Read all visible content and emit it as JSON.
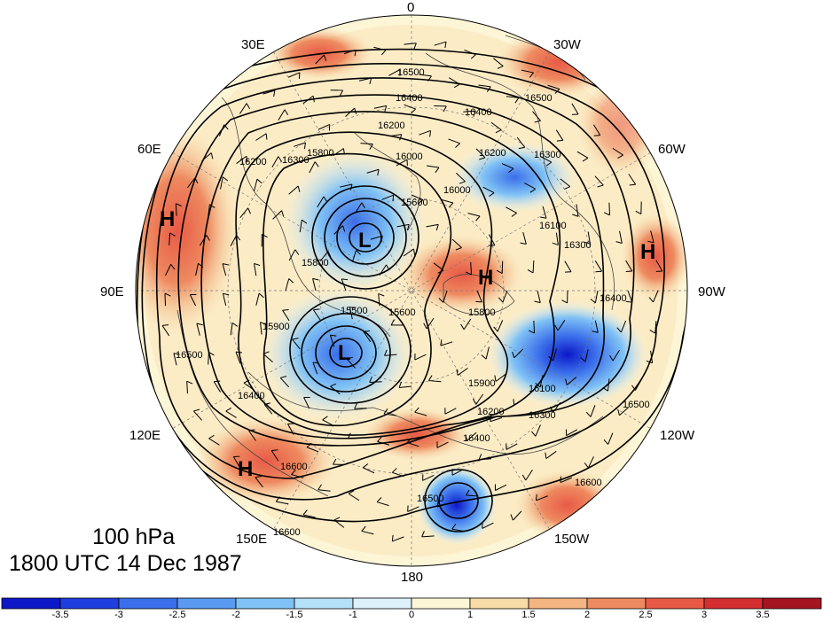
{
  "map": {
    "projection": "north-polar-stereographic",
    "field": "100 hPa geopotential height with standardized anomaly shading and wind barbs",
    "level": "100 hPa",
    "datetime": "1800 UTC 14 Dec 1987",
    "longitude_labels": [
      "0",
      "30W",
      "60W",
      "90W",
      "120W",
      "150W",
      "180",
      "150E",
      "120E",
      "90E",
      "60E",
      "30E"
    ],
    "contour_labels": [
      "16500",
      "16400",
      "16400",
      "16500",
      "16200",
      "16300",
      "16200",
      "16000",
      "16100",
      "16300",
      "16400",
      "16500",
      "16600",
      "15900",
      "16100",
      "16300",
      "16200",
      "16400",
      "16500",
      "16600",
      "16600",
      "16500",
      "16400",
      "16300",
      "16200",
      "15800",
      "15600",
      "15600",
      "15900",
      "15500",
      "15800",
      "15800",
      "16000"
    ],
    "pressure_centers": [
      {
        "type": "H",
        "location": "western Siberia (60-90E)"
      },
      {
        "type": "L",
        "location": "north of Scandinavia"
      },
      {
        "type": "H",
        "location": "Canadian Arctic"
      },
      {
        "type": "H",
        "location": "Atlantic near 90W edge"
      },
      {
        "type": "L",
        "location": "Siberian Arctic"
      },
      {
        "type": "H",
        "location": "East Asia near 135E"
      }
    ],
    "colorbar": {
      "ticks": [
        "-3.5",
        "-3",
        "-2.5",
        "-2",
        "-1.5",
        "-1",
        "0",
        "1",
        "1.5",
        "2",
        "2.5",
        "3",
        "3.5"
      ],
      "colors": [
        "#0c18c8",
        "#1e3ee0",
        "#3a6eea",
        "#5a9af0",
        "#80c2f5",
        "#b4e0f8",
        "#ddf1fa",
        "#fcf5d6",
        "#f8dca8",
        "#f4b582",
        "#ee8a60",
        "#e85a46",
        "#d42e30",
        "#a51421"
      ]
    }
  }
}
